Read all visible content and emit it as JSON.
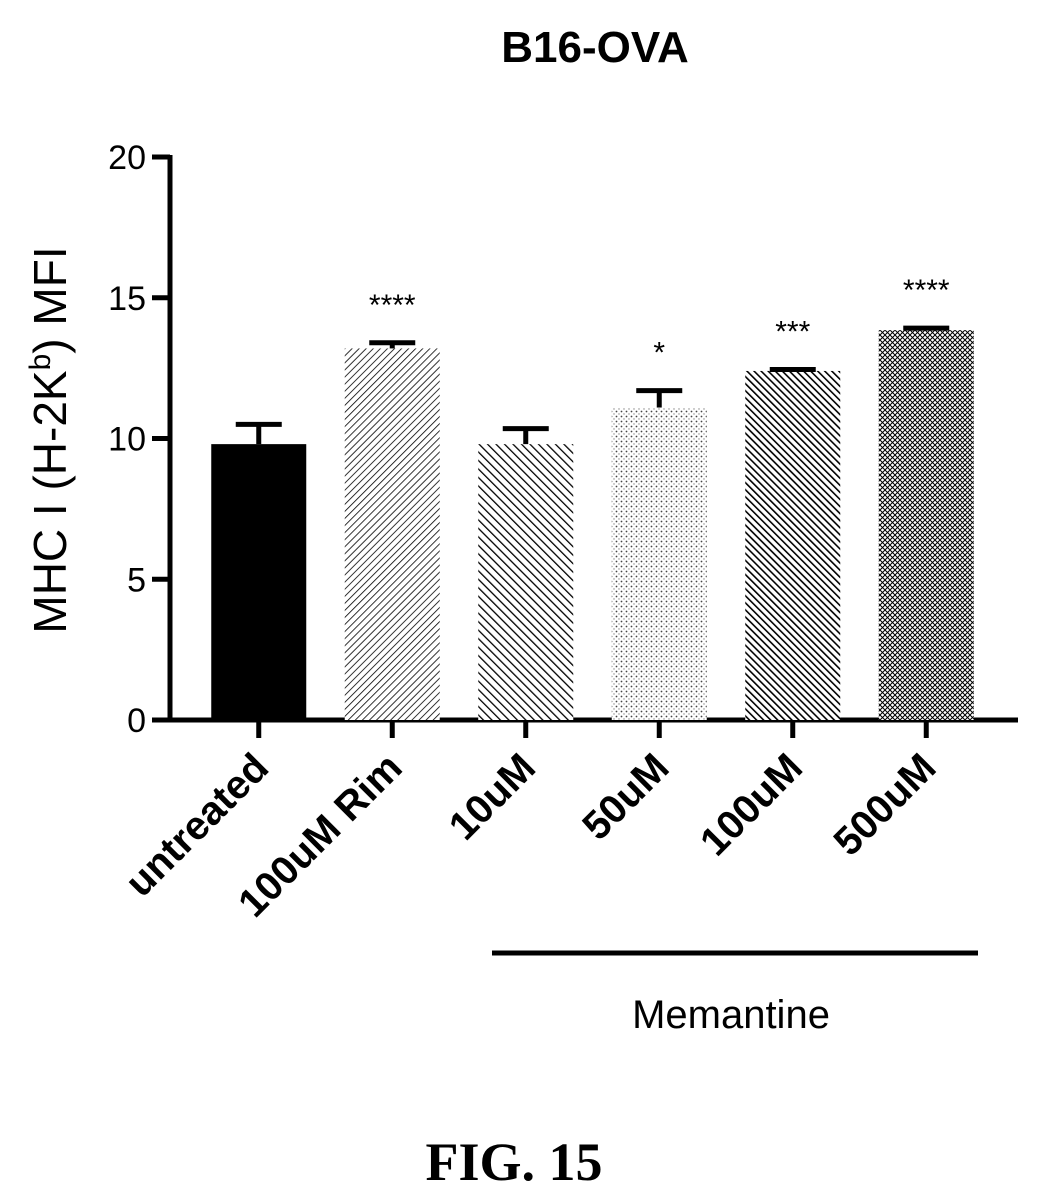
{
  "chart_data": {
    "type": "bar",
    "title": "B16-OVA",
    "ylabel": {
      "pre": "MHC I (H-2K",
      "sup": "b",
      "post": ") MFI"
    },
    "ylim": [
      0,
      20
    ],
    "yticks": [
      0,
      5,
      10,
      15,
      20
    ],
    "categories": [
      "untreated",
      "100uM Rim",
      "10uM",
      "50uM",
      "100uM",
      "500uM"
    ],
    "values": [
      9.8,
      13.2,
      9.8,
      11.1,
      12.4,
      13.85
    ],
    "errors": [
      0.7,
      0.2,
      0.55,
      0.6,
      0.05,
      0.07
    ],
    "significance": [
      "",
      "****",
      "",
      "*",
      "***",
      "****"
    ],
    "fills": [
      "solid",
      "hatch-fine",
      "hatch-medium",
      "dots",
      "hatch-dense",
      "hatch-cross"
    ],
    "group_label": {
      "text": "Memantine",
      "categories": [
        "10uM",
        "50uM",
        "100uM",
        "500uM"
      ]
    },
    "grid": false,
    "legend": "none"
  },
  "figure_label": "FIG. 15"
}
